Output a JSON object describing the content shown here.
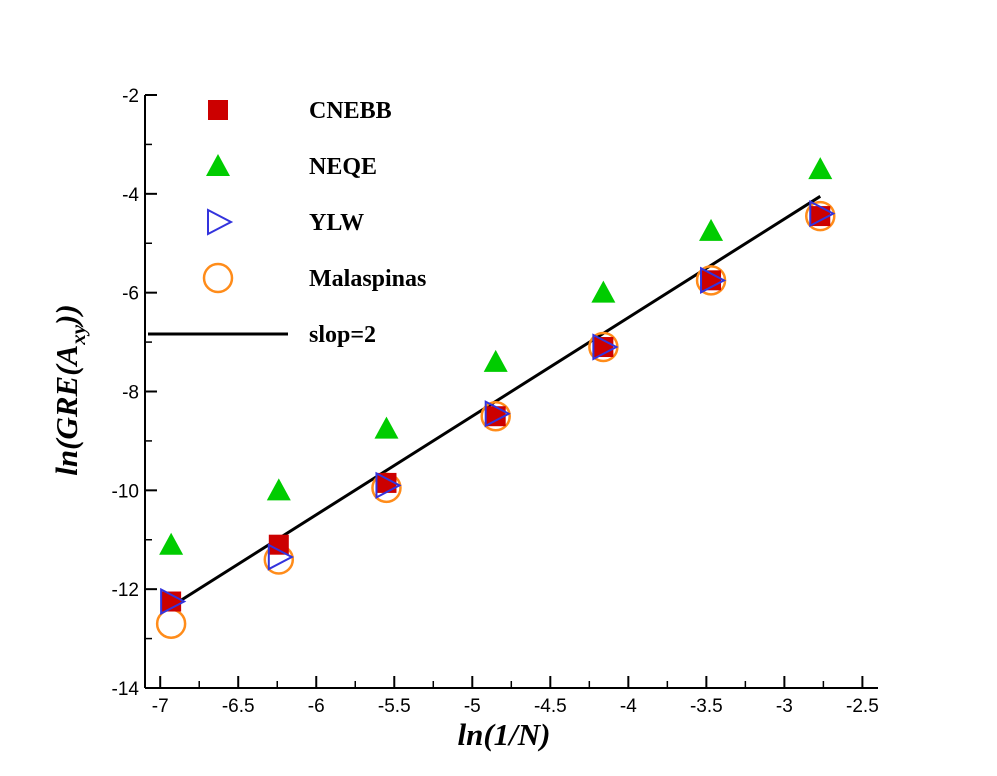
{
  "chart_data": {
    "type": "scatter",
    "xlabel": "ln(1/N)",
    "ylabel_parts": {
      "pre": "ln(GRE(A",
      "sub": "xy",
      "post": "))"
    },
    "xlim": [
      -7.2,
      -2.4
    ],
    "ylim": [
      -14,
      -2
    ],
    "xticks": [
      -7,
      -6.5,
      -6,
      -5.5,
      -5,
      -4.5,
      -4,
      -3.5,
      -3,
      -2.5
    ],
    "xtick_labels": [
      "-7",
      "-6.5",
      "-6",
      "-5.5",
      "-5",
      "-4.5",
      "-4",
      "-3.5",
      "-3",
      "-2.5"
    ],
    "yticks": [
      -14,
      -12,
      -10,
      -8,
      -6,
      -4,
      -2
    ],
    "ytick_labels": [
      "-14",
      "-12",
      "-10",
      "-8",
      "-6",
      "-4",
      "-2"
    ],
    "legend_position": "top-left",
    "series": [
      {
        "name": "CNEBB",
        "marker": "square",
        "color": "#cc0000",
        "x": [
          -6.93,
          -6.24,
          -5.55,
          -4.85,
          -4.16,
          -3.47,
          -2.77
        ],
        "y": [
          -12.25,
          -11.1,
          -9.85,
          -8.5,
          -7.1,
          -5.75,
          -4.45
        ]
      },
      {
        "name": "NEQE",
        "marker": "triangle-up",
        "color": "#00cc00",
        "x": [
          -6.93,
          -6.24,
          -5.55,
          -4.85,
          -4.16,
          -3.47,
          -2.77
        ],
        "y": [
          -11.1,
          -10.0,
          -8.75,
          -7.4,
          -6.0,
          -4.75,
          -3.5
        ]
      },
      {
        "name": "YLW",
        "marker": "triangle-right",
        "color": "#3333dd",
        "x": [
          -6.93,
          -6.24,
          -5.55,
          -4.85,
          -4.16,
          -3.47,
          -2.77
        ],
        "y": [
          -12.25,
          -11.35,
          -9.9,
          -8.45,
          -7.1,
          -5.75,
          -4.4
        ]
      },
      {
        "name": "Malaspinas",
        "marker": "circle",
        "color": "#ff8c1a",
        "x": [
          -6.93,
          -6.24,
          -5.55,
          -4.85,
          -4.16,
          -3.47,
          -2.77
        ],
        "y": [
          -12.7,
          -11.4,
          -9.95,
          -8.5,
          -7.1,
          -5.75,
          -4.45
        ]
      }
    ],
    "line": {
      "name": "slop=2",
      "color": "#000000",
      "x": [
        -6.93,
        -2.77
      ],
      "y": [
        -12.35,
        -4.05
      ]
    }
  }
}
